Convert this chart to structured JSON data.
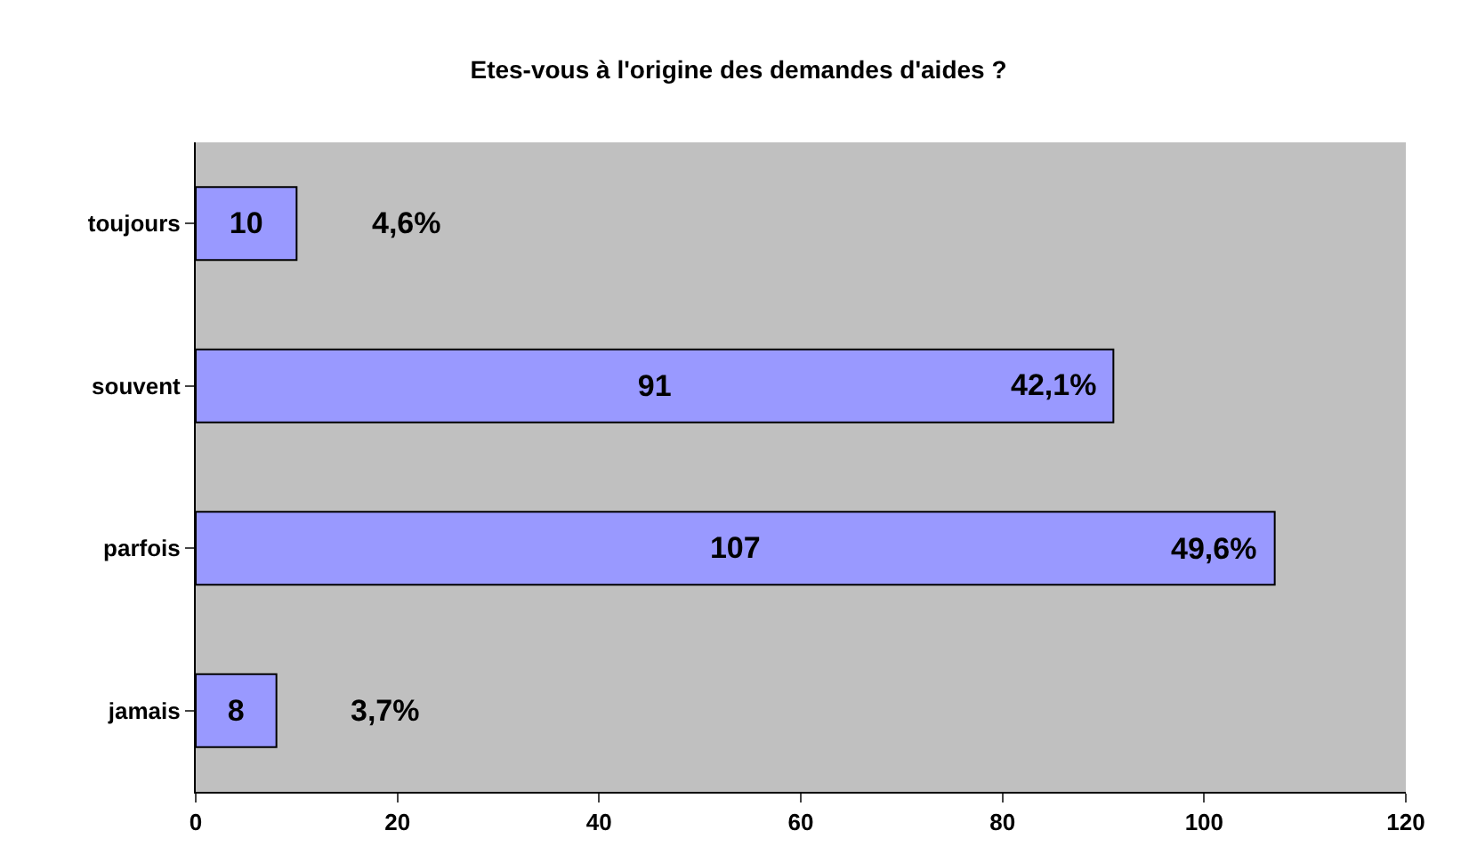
{
  "chart_data": {
    "type": "bar",
    "orientation": "horizontal",
    "title": "Etes-vous à l'origine des demandes d'aides ?",
    "categories": [
      "toujours",
      "souvent",
      "parfois",
      "jamais"
    ],
    "values": [
      10,
      91,
      107,
      8
    ],
    "color": "#9999ff",
    "data_labels": true,
    "xlim": [
      0,
      120
    ],
    "xticks": [
      0,
      20,
      40,
      60,
      80,
      100,
      120
    ],
    "grid": false,
    "legend": false,
    "annotations": [
      {
        "text": "4,6%",
        "x": 10,
        "y": "toujours"
      },
      {
        "text": "42,1%",
        "x": 91,
        "y": "souvent"
      },
      {
        "text": "49,6%",
        "x": 107,
        "y": "parfois"
      },
      {
        "text": "3,7%",
        "x": 8,
        "y": "jamais"
      }
    ]
  }
}
